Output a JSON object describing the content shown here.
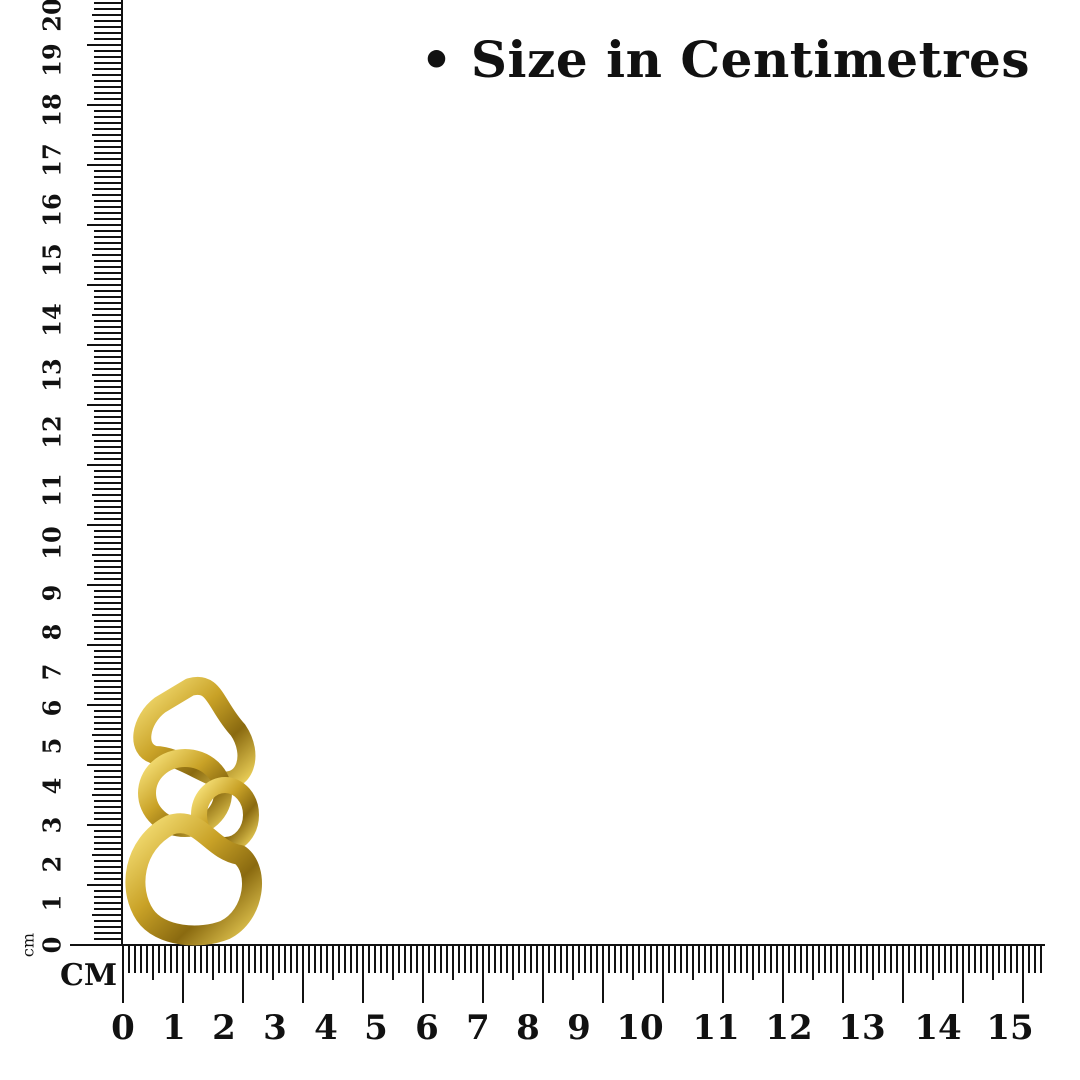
{
  "title": "• Size in Centimetres",
  "unit_horizontal": "CM",
  "unit_vertical": "cm",
  "horizontal_ruler": {
    "labels": [
      "0",
      "1",
      "2",
      "3",
      "4",
      "5",
      "6",
      "7",
      "8",
      "9",
      "10",
      "11",
      "12",
      "13",
      "14",
      "15"
    ]
  },
  "vertical_ruler": {
    "labels": [
      "0",
      "1",
      "2",
      "3",
      "4",
      "5",
      "6",
      "7",
      "8",
      "9",
      "10",
      "11",
      "12",
      "13",
      "14",
      "15",
      "16",
      "17",
      "18",
      "19",
      "20"
    ]
  },
  "product": {
    "name": "gold chain link earring",
    "color": "#c9a227"
  }
}
